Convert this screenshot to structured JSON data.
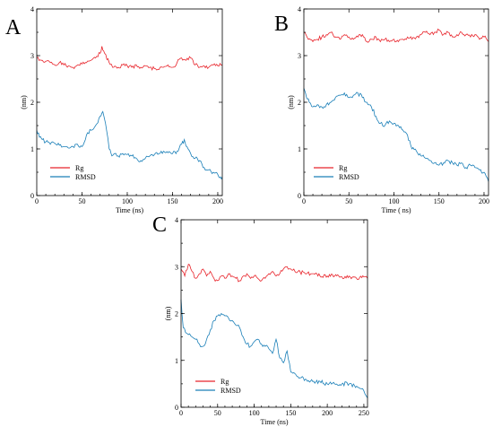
{
  "chart_data": [
    {
      "panel": "A",
      "type": "line",
      "xlabel": "Time (ns)",
      "ylabel": "(nm)",
      "xlim": [
        0,
        205
      ],
      "ylim": [
        0,
        4
      ],
      "xticks": [
        "0",
        "50",
        "100",
        "150",
        "200"
      ],
      "yticks": [
        "0",
        "1",
        "2",
        "3",
        "4"
      ],
      "grid": false,
      "legend_position": "bottom-left",
      "series": [
        {
          "name": "Rg",
          "color": "#e8242b",
          "x": [
            0,
            5,
            10,
            15,
            20,
            25,
            30,
            35,
            40,
            45,
            50,
            55,
            60,
            65,
            70,
            72,
            75,
            80,
            85,
            90,
            95,
            100,
            105,
            110,
            115,
            120,
            125,
            130,
            135,
            140,
            145,
            150,
            155,
            160,
            165,
            170,
            175,
            180,
            185,
            190,
            195,
            200,
            205
          ],
          "y": [
            2.95,
            2.9,
            2.88,
            2.85,
            2.8,
            2.85,
            2.8,
            2.78,
            2.75,
            2.8,
            2.82,
            2.85,
            2.9,
            2.95,
            3.05,
            3.2,
            3.05,
            2.85,
            2.75,
            2.75,
            2.8,
            2.78,
            2.75,
            2.8,
            2.75,
            2.78,
            2.75,
            2.72,
            2.7,
            2.75,
            2.8,
            2.75,
            2.85,
            2.95,
            2.9,
            2.95,
            2.8,
            2.75,
            2.78,
            2.75,
            2.8,
            2.78,
            2.8
          ]
        },
        {
          "name": "RMSD",
          "color": "#1a7fb8",
          "x": [
            0,
            3,
            6,
            10,
            15,
            20,
            25,
            30,
            35,
            40,
            45,
            50,
            55,
            60,
            65,
            70,
            73,
            76,
            80,
            83,
            86,
            90,
            95,
            100,
            105,
            110,
            115,
            120,
            125,
            130,
            135,
            140,
            145,
            150,
            155,
            160,
            163,
            166,
            170,
            175,
            180,
            185,
            190,
            195,
            200,
            203,
            205
          ],
          "y": [
            1.4,
            1.25,
            1.2,
            1.15,
            1.1,
            1.12,
            1.08,
            1.05,
            1.02,
            1.05,
            1.1,
            1.05,
            1.3,
            1.4,
            1.5,
            1.7,
            1.8,
            1.55,
            1.0,
            0.85,
            0.9,
            0.85,
            0.9,
            0.88,
            0.85,
            0.8,
            0.75,
            0.8,
            0.85,
            0.88,
            0.9,
            0.95,
            0.92,
            0.9,
            0.95,
            1.1,
            1.2,
            1.05,
            0.9,
            0.8,
            0.75,
            0.6,
            0.55,
            0.5,
            0.45,
            0.4,
            0.4
          ]
        }
      ]
    },
    {
      "panel": "B",
      "type": "line",
      "xlabel": "Time ( ns)",
      "ylabel": "(nm)",
      "xlim": [
        0,
        205
      ],
      "ylim": [
        0,
        4
      ],
      "xticks": [
        "0",
        "50",
        "100",
        "150",
        "200"
      ],
      "yticks": [
        "0",
        "1",
        "2",
        "3",
        "4"
      ],
      "grid": false,
      "legend_position": "bottom-left",
      "series": [
        {
          "name": "Rg",
          "color": "#e8242b",
          "x": [
            0,
            5,
            10,
            15,
            20,
            25,
            30,
            35,
            40,
            45,
            50,
            55,
            60,
            65,
            70,
            75,
            80,
            85,
            90,
            95,
            100,
            105,
            110,
            115,
            120,
            125,
            130,
            135,
            140,
            145,
            150,
            155,
            160,
            165,
            170,
            175,
            180,
            185,
            190,
            195,
            200,
            205
          ],
          "y": [
            3.5,
            3.35,
            3.3,
            3.35,
            3.4,
            3.45,
            3.5,
            3.4,
            3.35,
            3.45,
            3.4,
            3.35,
            3.4,
            3.45,
            3.3,
            3.35,
            3.4,
            3.3,
            3.35,
            3.3,
            3.35,
            3.3,
            3.35,
            3.4,
            3.35,
            3.4,
            3.45,
            3.5,
            3.45,
            3.5,
            3.55,
            3.45,
            3.5,
            3.4,
            3.45,
            3.5,
            3.45,
            3.4,
            3.45,
            3.35,
            3.4,
            3.3
          ]
        },
        {
          "name": "RMSD",
          "color": "#1a7fb8",
          "x": [
            0,
            3,
            6,
            10,
            15,
            20,
            25,
            30,
            35,
            40,
            45,
            50,
            55,
            60,
            65,
            70,
            75,
            80,
            85,
            90,
            95,
            100,
            105,
            110,
            115,
            120,
            125,
            130,
            135,
            140,
            145,
            150,
            155,
            160,
            165,
            170,
            175,
            180,
            185,
            190,
            195,
            200,
            205
          ],
          "y": [
            2.3,
            2.1,
            2.0,
            1.9,
            1.95,
            1.9,
            1.95,
            2.0,
            2.1,
            2.15,
            2.2,
            2.1,
            2.15,
            2.2,
            2.1,
            2.0,
            1.9,
            1.7,
            1.55,
            1.5,
            1.6,
            1.55,
            1.5,
            1.4,
            1.3,
            1.0,
            0.95,
            0.85,
            0.8,
            0.75,
            0.7,
            0.65,
            0.7,
            0.75,
            0.7,
            0.65,
            0.7,
            0.6,
            0.65,
            0.6,
            0.55,
            0.5,
            0.3
          ]
        }
      ]
    },
    {
      "panel": "C",
      "type": "line",
      "xlabel": "Time (ns)",
      "ylabel": "(nm)",
      "xlim": [
        0,
        255
      ],
      "ylim": [
        0,
        4
      ],
      "xticks": [
        "0",
        "50",
        "100",
        "150",
        "200",
        "250"
      ],
      "yticks": [
        "0",
        "1",
        "2",
        "3",
        "4"
      ],
      "grid": false,
      "legend_position": "bottom-left",
      "series": [
        {
          "name": "Rg",
          "color": "#e8242b",
          "x": [
            0,
            5,
            10,
            15,
            20,
            25,
            30,
            35,
            40,
            45,
            50,
            55,
            60,
            65,
            70,
            75,
            80,
            85,
            90,
            95,
            100,
            105,
            110,
            115,
            120,
            125,
            130,
            135,
            140,
            145,
            150,
            160,
            170,
            180,
            190,
            200,
            210,
            220,
            230,
            240,
            250,
            255
          ],
          "y": [
            2.95,
            2.8,
            3.05,
            2.9,
            2.75,
            2.85,
            2.95,
            2.8,
            2.9,
            2.75,
            2.7,
            2.8,
            2.75,
            2.85,
            2.8,
            2.75,
            2.7,
            2.8,
            2.85,
            2.75,
            2.8,
            2.75,
            2.7,
            2.75,
            2.85,
            2.9,
            2.8,
            2.85,
            2.95,
            3.0,
            2.95,
            2.9,
            2.85,
            2.85,
            2.8,
            2.8,
            2.8,
            2.78,
            2.8,
            2.75,
            2.78,
            2.75
          ]
        },
        {
          "name": "RMSD",
          "color": "#1a7fb8",
          "x": [
            0,
            3,
            6,
            10,
            15,
            20,
            25,
            30,
            35,
            40,
            45,
            50,
            55,
            60,
            65,
            70,
            75,
            80,
            85,
            90,
            95,
            100,
            105,
            110,
            115,
            120,
            125,
            130,
            135,
            140,
            145,
            150,
            160,
            170,
            180,
            190,
            200,
            210,
            220,
            230,
            240,
            245,
            250,
            255
          ],
          "y": [
            2.3,
            1.7,
            1.6,
            1.55,
            1.5,
            1.45,
            1.35,
            1.3,
            1.45,
            1.65,
            1.85,
            1.95,
            2.0,
            1.95,
            1.9,
            1.85,
            1.75,
            1.7,
            1.5,
            1.35,
            1.3,
            1.4,
            1.45,
            1.35,
            1.3,
            1.25,
            1.15,
            1.45,
            1.05,
            0.95,
            1.2,
            0.75,
            0.65,
            0.6,
            0.55,
            0.55,
            0.5,
            0.5,
            0.5,
            0.5,
            0.45,
            0.4,
            0.35,
            0.2
          ]
        }
      ]
    }
  ]
}
